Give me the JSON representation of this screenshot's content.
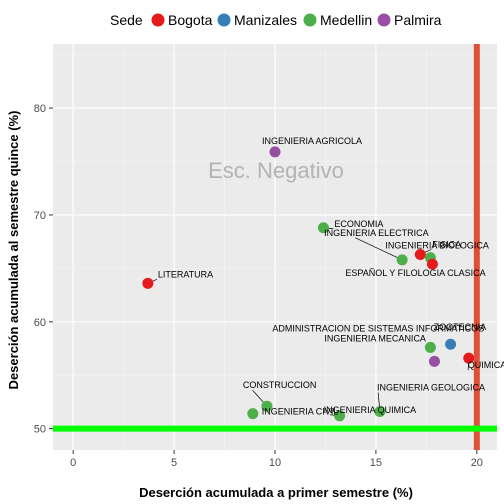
{
  "chart_data": {
    "type": "scatter",
    "xlabel": "Deserción acumulada a primer semestre (%)",
    "ylabel": "Deserción acumulada al semestre quince (%)",
    "xlim": [
      -1,
      21
    ],
    "ylim": [
      48,
      86
    ],
    "xticks": [
      0,
      5,
      10,
      15,
      20
    ],
    "yticks": [
      50,
      60,
      70,
      80
    ],
    "grid": true,
    "legend": {
      "title": "Sede",
      "position": "top",
      "entries": [
        {
          "name": "Bogota",
          "color": "#e41a1c"
        },
        {
          "name": "Manizales",
          "color": "#377eb8"
        },
        {
          "name": "Medellin",
          "color": "#4daf4a"
        },
        {
          "name": "Palmira",
          "color": "#984ea3"
        }
      ]
    },
    "annotation": "Esc. Negativo",
    "reference_lines": [
      {
        "orientation": "vertical",
        "value": 20,
        "color": "#e05038"
      },
      {
        "orientation": "horizontal",
        "value": 50,
        "color": "#00ff00"
      }
    ],
    "points": [
      {
        "label": "INGENIERIA AGRICOLA",
        "x": 10.0,
        "y": 75.9,
        "sede": "Palmira"
      },
      {
        "label": "ECONOMIA",
        "x": 12.4,
        "y": 68.8,
        "sede": "Medellin"
      },
      {
        "label": "INGENIERIA ELECTRICA",
        "x": 16.3,
        "y": 65.8,
        "sede": "Medellin"
      },
      {
        "label": "FISICA",
        "x": 17.2,
        "y": 66.3,
        "sede": "Bogota"
      },
      {
        "label": "INGENIERIA BIOLOGICA",
        "x": 17.7,
        "y": 66.0,
        "sede": "Medellin"
      },
      {
        "label": "ESPAÑOL Y FILOLOGIA CLASICA",
        "x": 17.8,
        "y": 65.4,
        "sede": "Bogota"
      },
      {
        "label": "LITERATURA",
        "x": 3.7,
        "y": 63.6,
        "sede": "Bogota"
      },
      {
        "label": "ADMINISTRACION DE SISTEMAS INFORMATICOS",
        "x": 17.7,
        "y": 57.6,
        "sede": "Medellin"
      },
      {
        "label": "ZOOTECNIA",
        "x": 18.7,
        "y": 57.9,
        "sede": "Manizales"
      },
      {
        "label": "INGENIERIA MECANICA",
        "x": 17.9,
        "y": 56.3,
        "sede": "Palmira"
      },
      {
        "label": "QUIMICA",
        "x": 19.6,
        "y": 56.6,
        "sede": "Bogota"
      },
      {
        "label": "CONSTRUCCION",
        "x": 9.6,
        "y": 52.1,
        "sede": "Medellin"
      },
      {
        "label": "INGENIERIA CIVIL",
        "x": 8.9,
        "y": 51.4,
        "sede": "Medellin"
      },
      {
        "label": "INGENIERIA QUIMICA",
        "x": 13.2,
        "y": 51.2,
        "sede": "Medellin"
      },
      {
        "label": "INGENIERIA GEOLOGICA",
        "x": 15.2,
        "y": 51.6,
        "sede": "Medellin"
      }
    ]
  }
}
